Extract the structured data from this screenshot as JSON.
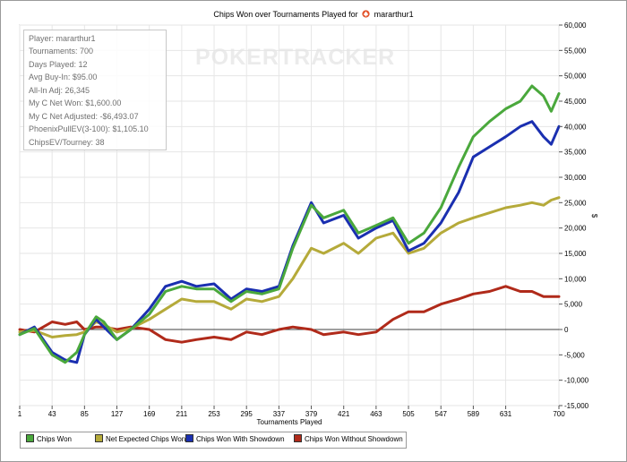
{
  "window": {
    "title": "Chips Won over Tournaments Played for",
    "player": "mararthur1"
  },
  "watermark": "POKERTRACKER",
  "stats": [
    "Player: mararthur1",
    "Tournaments: 700",
    "Days Played: 12",
    "Avg Buy-In: $95.00",
    "All-In Adj: 26,345",
    "My C Net Won: $1,600.00",
    "My C Net Adjusted: -$6,493.07",
    "PhoenixPullEV(3-100): $1,105.10",
    "ChipsEV/Tourney: 38"
  ],
  "colors": {
    "chips_won": "#4aa83c",
    "net_expected": "#b5aa3a",
    "with_showdown": "#1a2fb0",
    "without_showdown": "#b02a1a"
  },
  "chart_data": {
    "type": "line",
    "title": "Chips Won over Tournaments Played for mararthur1",
    "xlabel": "Tournaments Played",
    "ylabel": "$",
    "xlim": [
      1,
      700
    ],
    "ylim": [
      -15000,
      60000
    ],
    "x_ticks": [
      "1",
      "43",
      "85",
      "127",
      "169",
      "211",
      "253",
      "295",
      "337",
      "379",
      "421",
      "463",
      "505",
      "547",
      "589",
      "631",
      "700"
    ],
    "y_ticks": [
      "-15,000",
      "-10,000",
      "-5,000",
      "0",
      "5,000",
      "10,000",
      "15,000",
      "20,000",
      "25,000",
      "30,000",
      "35,000",
      "40,000",
      "45,000",
      "50,000",
      "55,000",
      "60,000"
    ],
    "legend_position": "bottom",
    "grid": true,
    "x": [
      1,
      20,
      43,
      60,
      75,
      85,
      100,
      110,
      127,
      145,
      169,
      190,
      211,
      230,
      253,
      275,
      295,
      315,
      337,
      355,
      379,
      395,
      421,
      440,
      463,
      485,
      505,
      525,
      547,
      570,
      589,
      610,
      631,
      650,
      665,
      680,
      690,
      700
    ],
    "series": [
      {
        "name": "Chips Won",
        "color_key": "chips_won",
        "values": [
          -1000,
          200,
          -5000,
          -6500,
          -4500,
          -1000,
          2500,
          1500,
          -2000,
          0,
          3000,
          7500,
          8500,
          8000,
          8000,
          5500,
          7500,
          7000,
          8000,
          16000,
          24500,
          22000,
          23500,
          19000,
          20500,
          22000,
          17000,
          19000,
          24000,
          32000,
          38000,
          41000,
          43500,
          45000,
          48000,
          46000,
          43000,
          46500
        ]
      },
      {
        "name": "Net Expected Chips Won",
        "color_key": "net_expected",
        "values": [
          -500,
          -200,
          -1500,
          -1200,
          -1000,
          -500,
          1500,
          1000,
          -500,
          200,
          2000,
          4000,
          6000,
          5500,
          5500,
          4000,
          6000,
          5500,
          6500,
          10000,
          16000,
          15000,
          17000,
          15000,
          18000,
          19000,
          15000,
          16000,
          19000,
          21000,
          22000,
          23000,
          24000,
          24500,
          25000,
          24500,
          25500,
          26000
        ]
      },
      {
        "name": "Chips Won With Showdown",
        "color_key": "with_showdown",
        "values": [
          -1000,
          500,
          -4500,
          -6000,
          -6500,
          -1000,
          2000,
          500,
          -2000,
          0,
          4000,
          8500,
          9500,
          8500,
          9000,
          6000,
          8000,
          7500,
          8500,
          16500,
          25000,
          21000,
          22500,
          18000,
          20000,
          21500,
          15500,
          17000,
          21000,
          27000,
          34000,
          36000,
          38000,
          40000,
          41000,
          38000,
          36500,
          40000
        ]
      },
      {
        "name": "Chips Won Without Showdown",
        "color_key": "without_showdown",
        "values": [
          0,
          -500,
          1500,
          1000,
          1500,
          0,
          500,
          500,
          0,
          500,
          0,
          -2000,
          -2500,
          -2000,
          -1500,
          -2000,
          -500,
          -1000,
          0,
          500,
          0,
          -1000,
          -500,
          -1000,
          -500,
          2000,
          3500,
          3500,
          5000,
          6000,
          7000,
          7500,
          8500,
          7500,
          7500,
          6500,
          6500,
          6500
        ]
      }
    ]
  }
}
